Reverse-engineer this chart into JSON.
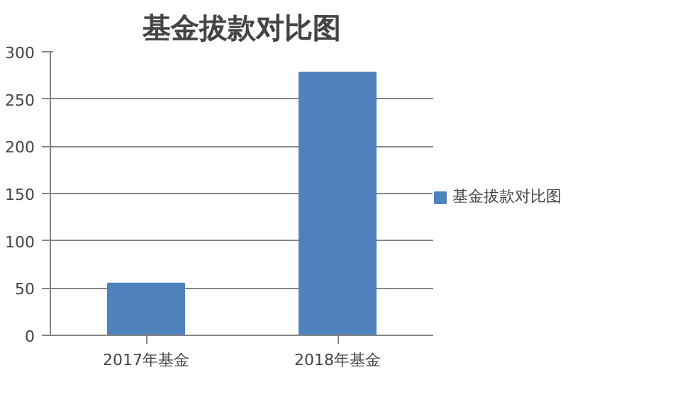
{
  "chart_data": {
    "type": "bar",
    "title": "基金拔款对比图",
    "categories": [
      "2017年基金",
      "2018年基金"
    ],
    "series": [
      {
        "name": "基金拔款对比图",
        "color": "#4f81bd",
        "values": [
          55,
          278
        ]
      }
    ],
    "ylim": [
      0,
      300
    ],
    "yticks": [
      0,
      50,
      100,
      150,
      200,
      250,
      300
    ],
    "grid": "y",
    "legend": "right"
  }
}
